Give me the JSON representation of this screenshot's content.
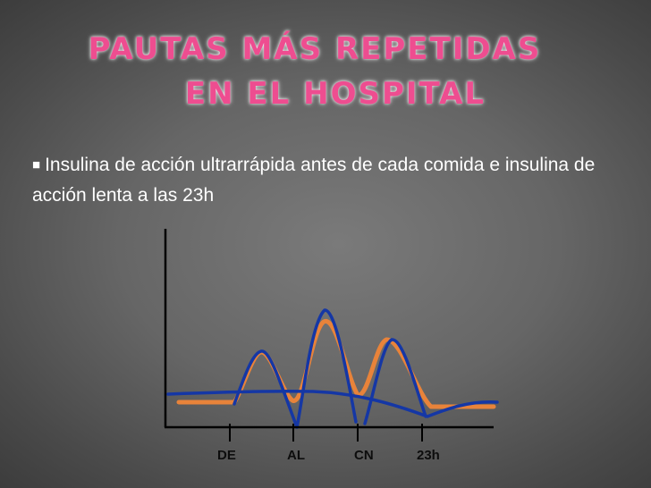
{
  "slide": {
    "title_line1": "PAUTAS MÁS REPETIDAS",
    "title_line2": "EN EL HOSPITAL",
    "bullet_glyph": "■",
    "bullet_text": "Insulina de acción ultrarrápida antes de cada comida e insulina de acción lenta a las 23h"
  },
  "diagram": {
    "labels": [
      "DE",
      "AL",
      "CN",
      "23h"
    ],
    "colors": {
      "glucose_curve": "#e8833a",
      "insulin_curve": "#1537a5",
      "axes": "#000000",
      "title": "#ee4d90",
      "background": "#666666"
    }
  }
}
